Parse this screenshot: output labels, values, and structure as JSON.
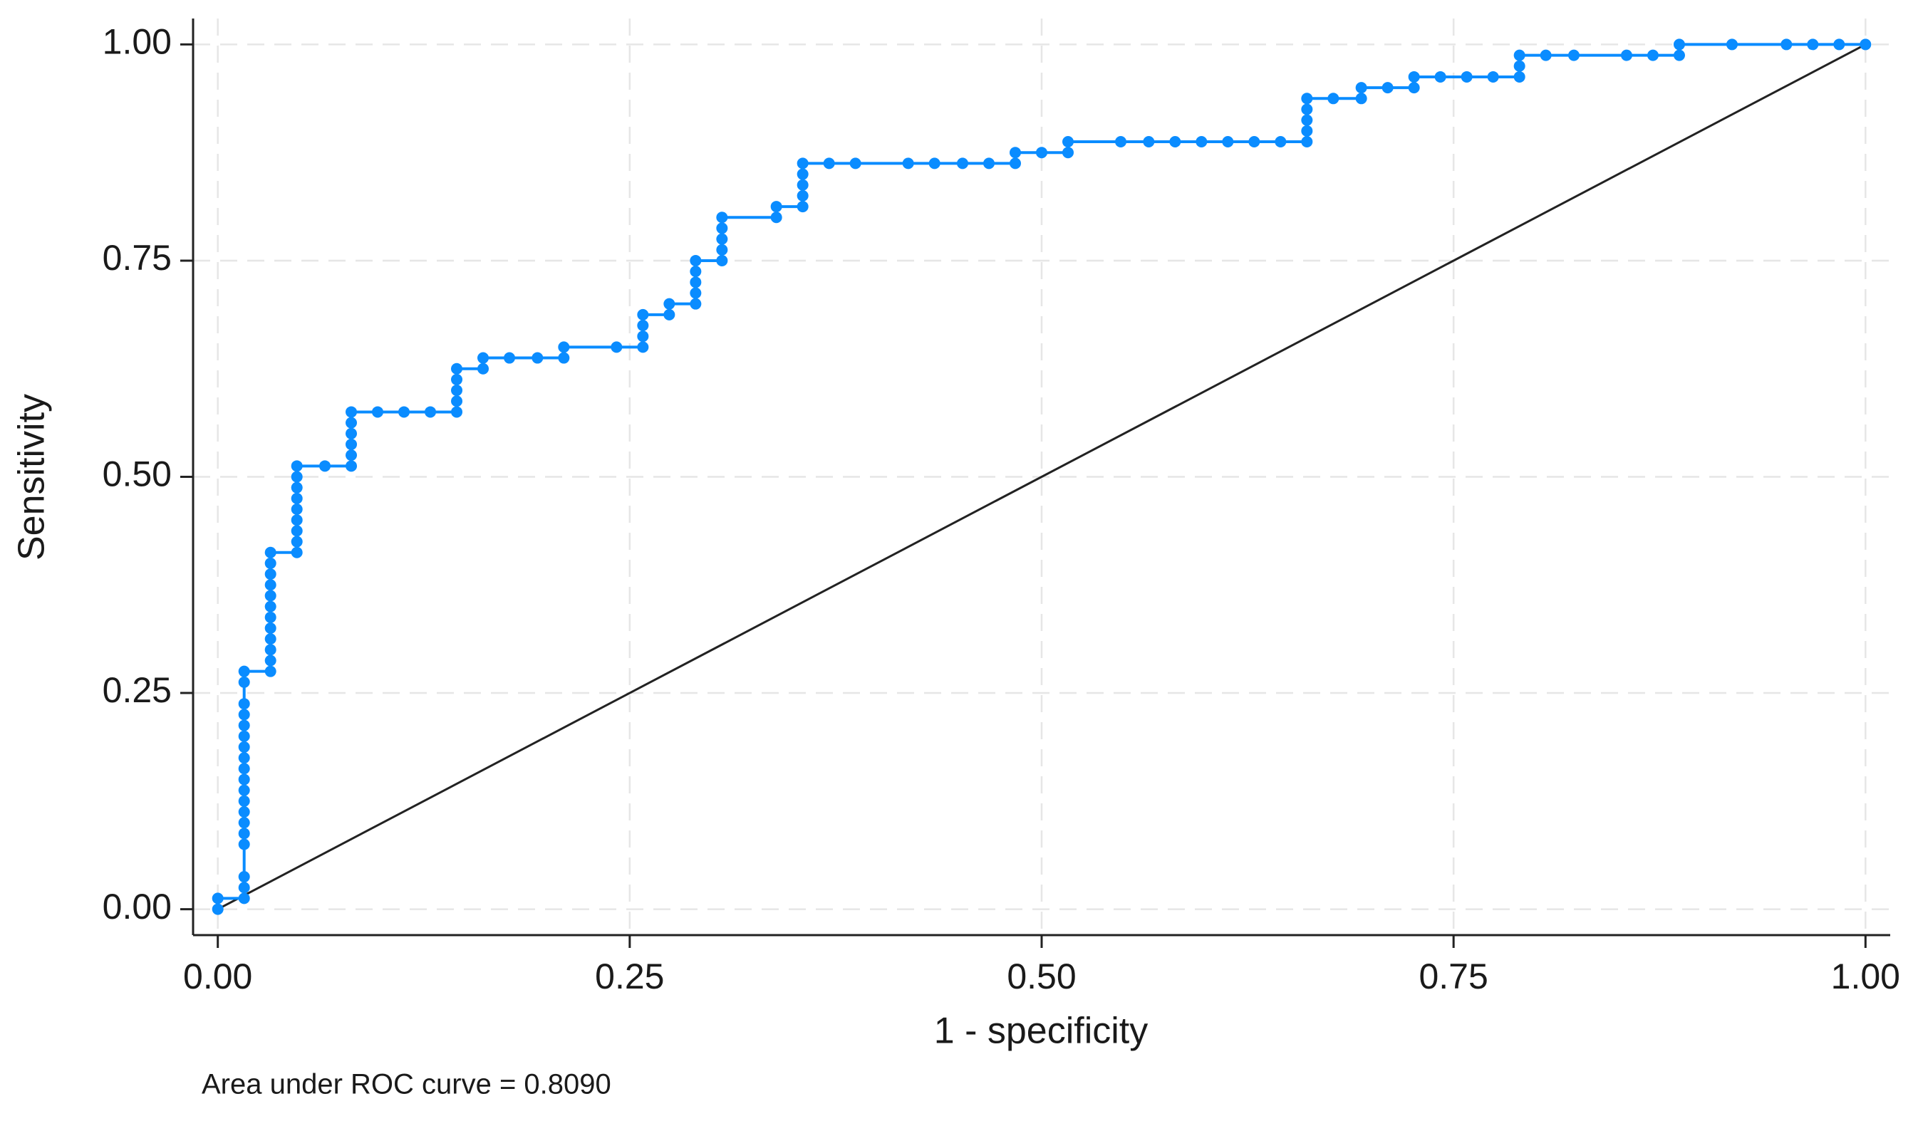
{
  "chart_data": {
    "type": "line",
    "x_label": "1 - specificity",
    "y_label": "Sensitivity",
    "annotation": "Area under ROC curve = 0.8090",
    "xlim": [
      -0.015,
      1.015
    ],
    "ylim": [
      -0.03,
      1.03
    ],
    "xticks": [
      {
        "value": 0,
        "label": "0.00"
      },
      0.25,
      {
        "value": 0.5,
        "label": "0.50"
      },
      0.75,
      {
        "value": 1,
        "label": "1.00"
      }
    ],
    "yticks": [
      {
        "value": 0,
        "label": "0.00"
      },
      0.25,
      {
        "value": 0.5,
        "label": "0.50"
      },
      0.75,
      {
        "value": 1,
        "label": "1.00"
      }
    ],
    "grid": true,
    "reference_color": "#222222",
    "series": [
      {
        "color": "#0a8cff",
        "x": [
          0,
          0,
          0.016,
          0.016,
          0.016,
          0.016,
          0.016,
          0.016,
          0.016,
          0.016,
          0.016,
          0.016,
          0.016,
          0.016,
          0.016,
          0.016,
          0.016,
          0.016,
          0.016,
          0.016,
          0.016,
          0.032,
          0.032,
          0.032,
          0.032,
          0.032,
          0.032,
          0.032,
          0.032,
          0.032,
          0.032,
          0.032,
          0.032,
          0.048,
          0.048,
          0.048,
          0.048,
          0.048,
          0.048,
          0.048,
          0.048,
          0.048,
          0.065,
          0.081,
          0.081,
          0.081,
          0.081,
          0.081,
          0.081,
          0.097,
          0.113,
          0.129,
          0.145,
          0.145,
          0.145,
          0.145,
          0.145,
          0.161,
          0.161,
          0.177,
          0.194,
          0.21,
          0.21,
          0.242,
          0.258,
          0.258,
          0.258,
          0.258,
          0.274,
          0.274,
          0.29,
          0.29,
          0.29,
          0.29,
          0.29,
          0.306,
          0.306,
          0.306,
          0.306,
          0.306,
          0.339,
          0.339,
          0.355,
          0.355,
          0.355,
          0.355,
          0.355,
          0.371,
          0.387,
          0.419,
          0.435,
          0.452,
          0.468,
          0.484,
          0.484,
          0.5,
          0.516,
          0.516,
          0.548,
          0.565,
          0.581,
          0.597,
          0.613,
          0.629,
          0.645,
          0.661,
          0.661,
          0.661,
          0.661,
          0.661,
          0.677,
          0.694,
          0.694,
          0.71,
          0.726,
          0.726,
          0.742,
          0.758,
          0.774,
          0.79,
          0.79,
          0.79,
          0.806,
          0.823,
          0.855,
          0.871,
          0.887,
          0.887,
          0.919,
          0.952,
          0.968,
          0.984,
          1
        ],
        "values": [
          0,
          0.0125,
          0.0125,
          0.025,
          0.0375,
          0.075,
          0.0875,
          0.1,
          0.1125,
          0.125,
          0.1375,
          0.15,
          0.1625,
          0.175,
          0.1875,
          0.2,
          0.2125,
          0.225,
          0.2375,
          0.2625,
          0.275,
          0.275,
          0.2875,
          0.3,
          0.3125,
          0.325,
          0.3375,
          0.35,
          0.3625,
          0.375,
          0.3875,
          0.4,
          0.4125,
          0.4125,
          0.425,
          0.4375,
          0.45,
          0.4625,
          0.475,
          0.4875,
          0.5,
          0.5125,
          0.5125,
          0.5125,
          0.525,
          0.5375,
          0.55,
          0.5625,
          0.575,
          0.575,
          0.575,
          0.575,
          0.575,
          0.5875,
          0.6,
          0.6125,
          0.625,
          0.625,
          0.6375,
          0.6375,
          0.6375,
          0.6375,
          0.65,
          0.65,
          0.65,
          0.6625,
          0.675,
          0.6875,
          0.6875,
          0.7,
          0.7,
          0.7125,
          0.725,
          0.7375,
          0.75,
          0.75,
          0.7625,
          0.775,
          0.7875,
          0.8,
          0.8,
          0.8125,
          0.8125,
          0.825,
          0.8375,
          0.85,
          0.8625,
          0.8625,
          0.8625,
          0.8625,
          0.8625,
          0.8625,
          0.8625,
          0.8625,
          0.875,
          0.875,
          0.875,
          0.8875,
          0.8875,
          0.8875,
          0.8875,
          0.8875,
          0.8875,
          0.8875,
          0.8875,
          0.8875,
          0.9,
          0.9125,
          0.925,
          0.9375,
          0.9375,
          0.9375,
          0.95,
          0.95,
          0.95,
          0.9625,
          0.9625,
          0.9625,
          0.9625,
          0.9625,
          0.975,
          0.9875,
          0.9875,
          0.9875,
          0.9875,
          0.9875,
          0.9875,
          1,
          1,
          1,
          1,
          1,
          1
        ]
      }
    ]
  }
}
